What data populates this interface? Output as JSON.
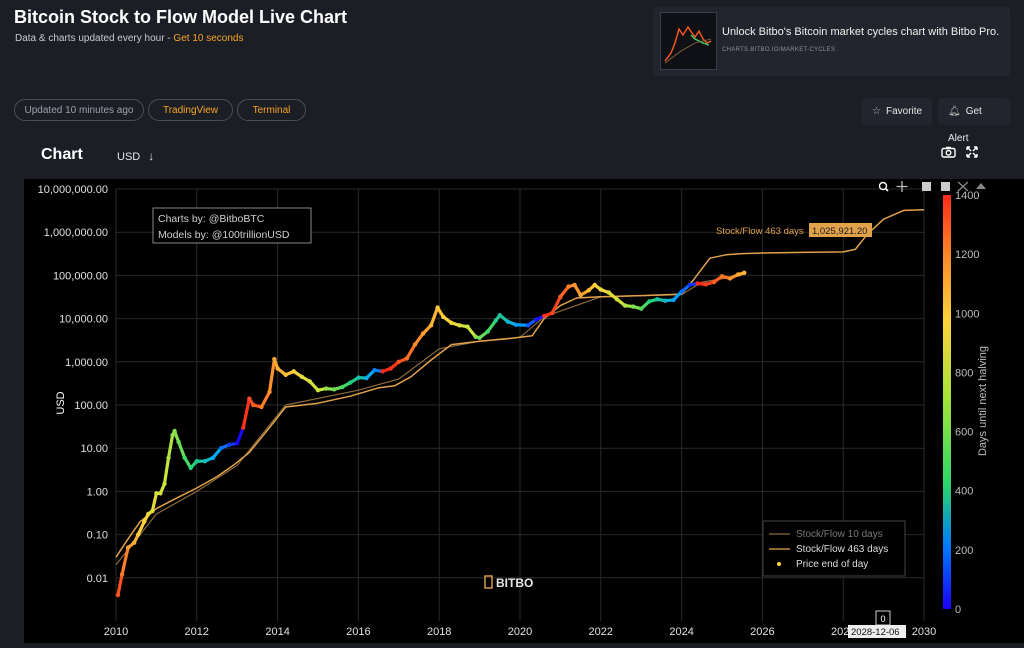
{
  "page": {
    "title": "Bitcoin Stock to Flow Model Live Chart",
    "subtitle_prefix": "Data & charts updated every hour - ",
    "subtitle_link": "Get 10 seconds"
  },
  "promo": {
    "text": "Unlock Bitbo's Bitcoin market cycles chart with Bitbo Pro.",
    "url": "CHARTS.BITBO.IO/MARKET-CYCLES"
  },
  "toolbar": {
    "updated_label": "Updated 10 minutes ago",
    "tradingview_label": "TradingView",
    "terminal_label": "Terminal",
    "favorite_label": "Favorite",
    "alert_label": "Get Alert"
  },
  "chart_header": {
    "title": "Chart",
    "currency": "USD"
  },
  "colors": {
    "background": "#1c1e26",
    "accent": "#f5a623",
    "model_line": "#e2a24c",
    "model_line_10": "#8a6a3c",
    "colorscale": [
      "#1a00ff",
      "#00a6ff",
      "#2bd66a",
      "#c8e63b",
      "#ffd23b",
      "#ff8a2b",
      "#ff2a1a"
    ]
  },
  "icons": {
    "favorite": "star-icon",
    "alert": "bell-icon",
    "download": "camera-icon",
    "fullscreen": "expand-icon",
    "dropdown": "arrow-down-icon"
  },
  "chart_data": {
    "type": "scatter",
    "ylabel": "USD",
    "yscale": "log",
    "ylim": [
      0.001,
      10000000
    ],
    "xlim": [
      2010.0,
      2030.0
    ],
    "x_ticks": [
      "2010",
      "2012",
      "2014",
      "2016",
      "2018",
      "2020",
      "2022",
      "2024",
      "2026",
      "2028",
      "2030"
    ],
    "y_ticks": [
      "0.01",
      "0.10",
      "1.00",
      "10.00",
      "100.00",
      "1,000.00",
      "10,000.00",
      "100,000.00",
      "1,000,000.00",
      "10,000,000.00"
    ],
    "annotation_box": [
      "Charts by: @BitboBTC",
      "Models by: @100trillionUSD"
    ],
    "model_label": "Stock/Flow 463 days",
    "model_value": "1,025,921.20",
    "hover_date": "2028-12-06",
    "hover_value": "0",
    "watermark": "BITBO",
    "colorbar": {
      "title": "Days until next halving",
      "range": [
        0,
        1400
      ],
      "ticks": [
        "0",
        "200",
        "400",
        "600",
        "800",
        "1000",
        "1200",
        "1400"
      ]
    },
    "legend": {
      "placement": "bottom-right",
      "items": [
        "Stock/Flow 10 days",
        "Stock/Flow 463 days",
        "Price end of day"
      ]
    },
    "series": [
      {
        "name": "Stock/Flow 463 days",
        "x": [
          2010.0,
          2010.3,
          2010.6,
          2011.0,
          2011.5,
          2012.0,
          2012.5,
          2012.9,
          2013.3,
          2013.8,
          2014.2,
          2015.0,
          2015.8,
          2016.5,
          2016.9,
          2017.3,
          2017.8,
          2018.3,
          2019.0,
          2019.8,
          2020.3,
          2020.6,
          2021.0,
          2021.4,
          2022.0,
          2023.0,
          2024.0,
          2024.3,
          2024.7,
          2025.1,
          2025.5,
          2026.0,
          2027.0,
          2028.0,
          2028.3,
          2028.6,
          2029.0,
          2029.5,
          2030.0
        ],
        "y": [
          0.03,
          0.08,
          0.2,
          0.4,
          0.7,
          1.2,
          2.2,
          4,
          8,
          30,
          90,
          110,
          160,
          250,
          280,
          450,
          1100,
          2500,
          3000,
          3500,
          4000,
          10000,
          20000,
          30000,
          32000,
          34000,
          37000,
          80000,
          250000,
          300000,
          320000,
          330000,
          340000,
          350000,
          400000,
          900000,
          2000000,
          3200000,
          3300000
        ]
      },
      {
        "name": "Stock/Flow 10 days",
        "x": [
          2010.0,
          2011.0,
          2012.0,
          2013.0,
          2014.2,
          2016.0,
          2017.0,
          2018.0,
          2019.0,
          2020.0,
          2020.6,
          2022.0,
          2024.0,
          2024.5,
          2025.5
        ],
        "y": [
          0.02,
          0.3,
          1,
          4,
          100,
          220,
          400,
          2000,
          3000,
          3700,
          11000,
          32000,
          36000,
          70000,
          100000
        ]
      },
      {
        "name": "Price end of day",
        "x": [
          2010.05,
          2010.15,
          2010.3,
          2010.45,
          2010.55,
          2010.7,
          2010.8,
          2010.9,
          2011.0,
          2011.1,
          2011.2,
          2011.3,
          2011.4,
          2011.45,
          2011.55,
          2011.7,
          2011.85,
          2012.0,
          2012.2,
          2012.4,
          2012.6,
          2012.8,
          2013.0,
          2013.15,
          2013.3,
          2013.4,
          2013.6,
          2013.8,
          2013.92,
          2014.0,
          2014.2,
          2014.4,
          2014.6,
          2014.8,
          2015.0,
          2015.2,
          2015.4,
          2015.6,
          2015.8,
          2016.0,
          2016.2,
          2016.4,
          2016.6,
          2016.8,
          2017.0,
          2017.2,
          2017.4,
          2017.6,
          2017.8,
          2017.96,
          2018.1,
          2018.3,
          2018.5,
          2018.7,
          2018.9,
          2019.0,
          2019.2,
          2019.4,
          2019.5,
          2019.7,
          2019.9,
          2020.2,
          2020.4,
          2020.6,
          2020.8,
          2021.0,
          2021.2,
          2021.35,
          2021.5,
          2021.7,
          2021.85,
          2022.0,
          2022.2,
          2022.4,
          2022.6,
          2022.8,
          2023.0,
          2023.2,
          2023.4,
          2023.6,
          2023.8,
          2024.0,
          2024.2,
          2024.4,
          2024.6,
          2024.8,
          2025.0,
          2025.2,
          2025.4,
          2025.55
        ],
        "y": [
          0.004,
          0.012,
          0.05,
          0.065,
          0.1,
          0.2,
          0.3,
          0.35,
          0.9,
          0.9,
          1.5,
          6,
          20,
          25,
          14,
          6,
          3.5,
          5,
          5,
          6,
          10,
          12,
          13,
          30,
          140,
          100,
          90,
          200,
          1150,
          700,
          500,
          600,
          450,
          350,
          220,
          240,
          230,
          260,
          330,
          430,
          420,
          640,
          600,
          700,
          1000,
          1200,
          2500,
          4500,
          7000,
          18000,
          11000,
          8000,
          7000,
          6500,
          3800,
          3600,
          5000,
          9000,
          12000,
          8500,
          7200,
          7000,
          9500,
          11500,
          13500,
          32000,
          55000,
          60000,
          35000,
          45000,
          60000,
          47000,
          40000,
          28000,
          20000,
          19000,
          17000,
          25000,
          28000,
          26000,
          27000,
          42000,
          60000,
          65000,
          62000,
          70000,
          95000,
          85000,
          105000,
          115000
        ],
        "days": [
          1300,
          1200,
          1100,
          1050,
          950,
          900,
          850,
          800,
          760,
          730,
          700,
          660,
          620,
          600,
          560,
          500,
          440,
          400,
          330,
          250,
          160,
          80,
          10,
          1380,
          1320,
          1280,
          1200,
          1140,
          1060,
          1040,
          980,
          900,
          820,
          760,
          700,
          620,
          560,
          500,
          420,
          360,
          260,
          180,
          1420,
          1370,
          1300,
          1230,
          1160,
          1100,
          1030,
          970,
          920,
          860,
          780,
          700,
          620,
          560,
          500,
          420,
          380,
          300,
          220,
          120,
          30,
          1380,
          1330,
          1260,
          1180,
          1120,
          1080,
          1000,
          940,
          870,
          800,
          730,
          660,
          590,
          520,
          440,
          370,
          300,
          220,
          150,
          70,
          1420,
          1350,
          1270,
          1210,
          1140,
          1070,
          1020
        ]
      }
    ]
  }
}
